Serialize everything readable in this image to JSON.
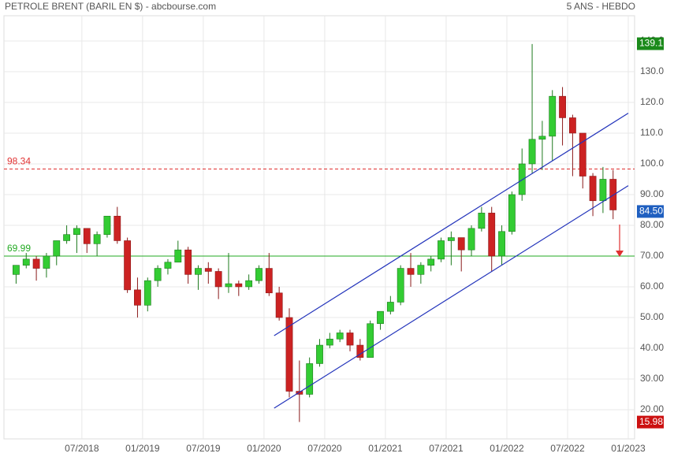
{
  "chart_data": {
    "type": "candlestick",
    "title": "PETROLE BRENT (BARIL EN $) - abcbourse.com",
    "subtitle": "5 ANS - HEBDO",
    "x": [
      "2017-12",
      "2018-01",
      "2018-02",
      "2018-03",
      "2018-04",
      "2018-05",
      "2018-06",
      "2018-07",
      "2018-08",
      "2018-09",
      "2018-10",
      "2018-11",
      "2018-12",
      "2019-01",
      "2019-02",
      "2019-03",
      "2019-04",
      "2019-05",
      "2019-06",
      "2019-07",
      "2019-08",
      "2019-09",
      "2019-10",
      "2019-11",
      "2019-12",
      "2020-01",
      "2020-02",
      "2020-03",
      "2020-04",
      "2020-05",
      "2020-06",
      "2020-07",
      "2020-08",
      "2020-09",
      "2020-10",
      "2020-11",
      "2020-12",
      "2021-01",
      "2021-02",
      "2021-03",
      "2021-04",
      "2021-05",
      "2021-06",
      "2021-07",
      "2021-08",
      "2021-09",
      "2021-10",
      "2021-11",
      "2021-12",
      "2022-01",
      "2022-02",
      "2022-03",
      "2022-04",
      "2022-05",
      "2022-06",
      "2022-07",
      "2022-08",
      "2022-09",
      "2022-10",
      "2022-11"
    ],
    "open": [
      64,
      67,
      69,
      66,
      70,
      75,
      77,
      79,
      74,
      77,
      83,
      75,
      59,
      54,
      62,
      66,
      68,
      72,
      64,
      66,
      65,
      60,
      61,
      60,
      62,
      66,
      58,
      50,
      26,
      25,
      35,
      41,
      43,
      45,
      41,
      37,
      48,
      52,
      55,
      66,
      64,
      67,
      69,
      75,
      76,
      72,
      79,
      84,
      70,
      78,
      90,
      100,
      108,
      109,
      122,
      115,
      110,
      96,
      88,
      95
    ],
    "high": [
      67,
      71,
      70,
      71,
      75,
      80,
      80,
      79,
      78,
      83,
      86,
      76,
      63,
      63,
      67,
      69,
      75,
      73,
      67,
      68,
      66,
      71,
      62,
      64,
      67,
      71,
      60,
      53,
      36,
      37,
      43,
      45,
      46,
      46,
      43,
      49,
      52,
      57,
      67,
      71,
      68,
      70,
      76,
      78,
      76,
      80,
      86,
      86,
      80,
      91,
      105,
      139,
      114,
      124,
      125,
      116,
      110,
      97,
      99,
      98
    ],
    "low": [
      61,
      66,
      62,
      63,
      67,
      74,
      71,
      71,
      70,
      76,
      74,
      58,
      50,
      52,
      60,
      64,
      68,
      61,
      59,
      61,
      56,
      58,
      57,
      59,
      61,
      57,
      49,
      24,
      16,
      24,
      34,
      40,
      42,
      39,
      36,
      37,
      46,
      51,
      54,
      60,
      61,
      65,
      68,
      67,
      65,
      70,
      78,
      65,
      67,
      77,
      88,
      97,
      98,
      101,
      106,
      96,
      92,
      83,
      84,
      82
    ],
    "close": [
      67,
      69,
      66,
      70,
      75,
      77,
      79,
      74,
      77,
      83,
      75,
      59,
      54,
      62,
      66,
      68,
      72,
      64,
      66,
      65,
      60,
      61,
      60,
      62,
      66,
      58,
      50,
      26,
      25,
      35,
      41,
      43,
      45,
      41,
      37,
      48,
      52,
      55,
      66,
      64,
      67,
      69,
      75,
      76,
      72,
      79,
      84,
      70,
      78,
      90,
      100,
      108,
      109,
      122,
      115,
      110,
      96,
      88,
      95,
      85
    ],
    "up_color": "#33cc33",
    "down_color": "#cc2222",
    "xlim": [
      "2017-12",
      "2023-01"
    ],
    "xticks": [
      {
        "value": "2018-07",
        "label": "07/2018"
      },
      {
        "value": "2019-01",
        "label": "01/2019"
      },
      {
        "value": "2019-07",
        "label": "07/2019"
      },
      {
        "value": "2020-01",
        "label": "01/2020"
      },
      {
        "value": "2020-07",
        "label": "07/2020"
      },
      {
        "value": "2021-01",
        "label": "01/2021"
      },
      {
        "value": "2021-07",
        "label": "07/2021"
      },
      {
        "value": "2022-01",
        "label": "01/2022"
      },
      {
        "value": "2022-07",
        "label": "07/2022"
      },
      {
        "value": "2023-01",
        "label": "01/2023"
      }
    ],
    "ylim": [
      10.5,
      148.2
    ],
    "yticks": [
      {
        "value": 20,
        "label": "20.00"
      },
      {
        "value": 30,
        "label": "30.00"
      },
      {
        "value": 40,
        "label": "40.00"
      },
      {
        "value": 50,
        "label": "50.00"
      },
      {
        "value": 60,
        "label": "60.00"
      },
      {
        "value": 70,
        "label": "70.00"
      },
      {
        "value": 80,
        "label": "80.00"
      },
      {
        "value": 90,
        "label": "90.00"
      },
      {
        "value": 100,
        "label": "100.0"
      },
      {
        "value": 110,
        "label": "110.0"
      },
      {
        "value": 120,
        "label": "120.0"
      },
      {
        "value": 130,
        "label": "130.0"
      },
      {
        "value": 140,
        "label": "140.0"
      }
    ],
    "grid": true,
    "reference_lines": [
      {
        "value": 98.34,
        "color": "#e03030"
      },
      {
        "value": 69.99,
        "color": "#22aa22"
      }
    ],
    "channel_lines": [
      {
        "x": [
          "2020-02",
          "2023-01"
        ],
        "y": [
          44.1,
          116.5
        ],
        "color": "#2233bb"
      },
      {
        "x": [
          "2020-02",
          "2023-01"
        ],
        "y": [
          20.5,
          92.9
        ],
        "color": "#2233bb"
      }
    ],
    "price_markers": [
      {
        "value": 139.1,
        "color": "#1a8a1a"
      },
      {
        "value": 84.5,
        "label": "84.50",
        "color": "#1f5fc0"
      },
      {
        "value": 15.98,
        "color": "#cc1111"
      }
    ]
  }
}
